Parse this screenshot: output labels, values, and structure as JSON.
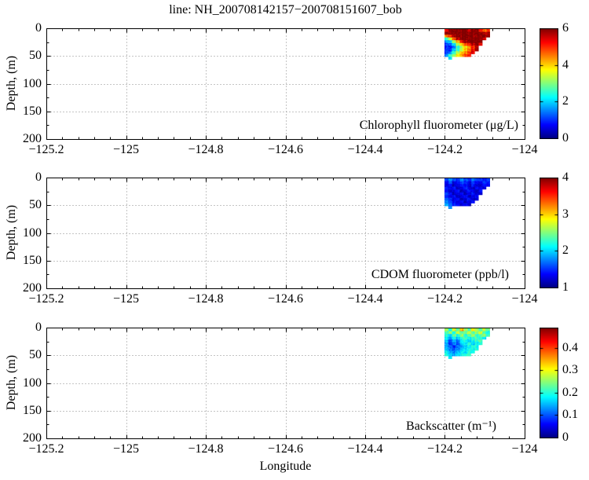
{
  "title": "line: NH_200708142157−200708151607_bob",
  "xlabel": "Longitude",
  "ylabel": "Depth, (m)",
  "axis": {
    "x_range": [
      -125.2,
      -124
    ],
    "y_range": [
      0,
      200
    ],
    "x_tick_values": [
      -125.2,
      -125,
      -124.8,
      -124.6,
      -124.4,
      -124.2,
      -124
    ],
    "x_tick_labels": [
      "−125.2",
      "−125",
      "−124.8",
      "−124.6",
      "−124.4",
      "−124.2",
      "−124"
    ],
    "y_tick_values": [
      0,
      50,
      100,
      150,
      200
    ],
    "y_tick_labels": [
      "0",
      "50",
      "100",
      "150",
      "200"
    ],
    "x_minor_step": 0.04,
    "y_minor_step": 25,
    "grid": "dotted"
  },
  "chart_data": [
    {
      "type": "heatmap",
      "name": "chlorophyll",
      "label": "Chlorophyll fluorometer (μg/L)",
      "colormap": "jet",
      "clim": [
        0,
        6
      ],
      "colorbar_tick_values": [
        0,
        2,
        4,
        6
      ],
      "colorbar_tick_labels": [
        "0",
        "2",
        "4",
        "6"
      ],
      "lon_range": [
        -124.2,
        -124.085
      ],
      "depth_range": [
        0,
        55
      ],
      "noise": 0.45,
      "grid": [
        [
          5.2,
          6,
          6,
          6,
          6,
          6,
          5.6,
          6,
          6,
          5.2,
          4.6,
          5.0
        ],
        [
          5.8,
          6,
          6,
          6,
          6,
          6,
          6,
          6,
          6,
          6,
          5.6,
          5.8
        ],
        [
          4.4,
          5.2,
          5.8,
          6,
          6,
          6,
          6,
          6,
          6,
          6,
          6,
          6
        ],
        [
          2.6,
          3.6,
          4.8,
          5.6,
          6,
          6,
          6,
          6,
          6,
          6,
          5.4,
          null
        ],
        [
          1.6,
          2.0,
          3.2,
          4.2,
          5.2,
          5.6,
          6,
          6,
          6,
          6,
          null,
          null
        ],
        [
          1.0,
          1.4,
          2.2,
          3.2,
          4.0,
          4.6,
          5.2,
          5.6,
          6,
          5.4,
          null,
          null
        ],
        [
          0.8,
          1.0,
          1.6,
          2.4,
          3.2,
          3.8,
          4.4,
          5.0,
          5.6,
          null,
          null,
          null
        ],
        [
          0.9,
          1.1,
          2.0,
          2.6,
          3.4,
          4.0,
          4.6,
          5.2,
          5.8,
          null,
          null,
          null
        ],
        [
          1.1,
          1.7,
          2.6,
          3.4,
          4.0,
          4.4,
          5.0,
          5.4,
          null,
          null,
          null,
          null
        ],
        [
          1.4,
          2.6,
          3.2,
          3.8,
          4.2,
          4.8,
          5.2,
          null,
          null,
          null,
          null,
          null
        ],
        [
          null,
          2.2,
          null,
          null,
          null,
          null,
          null,
          null,
          null,
          null,
          null,
          null
        ]
      ]
    },
    {
      "type": "heatmap",
      "name": "cdom",
      "label": "CDOM fluorometer (ppb/l)",
      "colormap": "jet",
      "clim": [
        1,
        4
      ],
      "colorbar_tick_values": [
        1,
        2,
        3,
        4
      ],
      "colorbar_tick_labels": [
        "1",
        "2",
        "3",
        "4"
      ],
      "lon_range": [
        -124.2,
        -124.085
      ],
      "depth_range": [
        0,
        55
      ],
      "noise": 0.14,
      "grid": [
        [
          1.6,
          1.8,
          1.6,
          1.5,
          1.8,
          1.6,
          1.5,
          1.7,
          1.6,
          1.5,
          1.4,
          1.5
        ],
        [
          1.4,
          1.6,
          1.3,
          1.4,
          1.6,
          1.5,
          1.3,
          1.5,
          1.4,
          1.3,
          1.5,
          1.4
        ],
        [
          1.3,
          1.4,
          1.2,
          1.3,
          1.5,
          1.4,
          1.2,
          1.4,
          1.3,
          1.2,
          1.4,
          1.3
        ],
        [
          1.5,
          1.3,
          1.4,
          1.2,
          1.3,
          1.5,
          1.3,
          1.2,
          1.4,
          1.3,
          1.2,
          null
        ],
        [
          1.4,
          1.2,
          1.3,
          1.4,
          1.2,
          1.3,
          1.4,
          1.3,
          1.2,
          1.4,
          null,
          null
        ],
        [
          1.6,
          1.4,
          1.2,
          1.3,
          1.4,
          1.2,
          1.3,
          1.4,
          1.3,
          1.2,
          null,
          null
        ],
        [
          1.5,
          1.3,
          1.4,
          1.2,
          1.3,
          1.4,
          1.2,
          1.3,
          1.4,
          null,
          null,
          null
        ],
        [
          1.7,
          1.5,
          1.3,
          1.4,
          1.2,
          1.3,
          1.4,
          1.2,
          1.3,
          null,
          null,
          null
        ],
        [
          1.8,
          1.6,
          1.4,
          1.3,
          1.4,
          1.2,
          1.3,
          1.4,
          null,
          null,
          null,
          null
        ],
        [
          1.9,
          1.7,
          1.5,
          1.4,
          1.3,
          1.4,
          1.2,
          null,
          null,
          null,
          null,
          null
        ],
        [
          null,
          1.8,
          null,
          null,
          null,
          null,
          null,
          null,
          null,
          null,
          null,
          null
        ]
      ]
    },
    {
      "type": "heatmap",
      "name": "backscatter",
      "label": "Backscatter (m⁻¹)",
      "colormap": "jet",
      "clim": [
        0,
        0.49
      ],
      "colorbar_tick_values": [
        0,
        0.1,
        0.2,
        0.3,
        0.4
      ],
      "colorbar_tick_labels": [
        "0",
        "0.1",
        "0.2",
        "0.3",
        "0.4"
      ],
      "lon_range": [
        -124.2,
        -124.085
      ],
      "depth_range": [
        0,
        55
      ],
      "noise": 0.035,
      "grid": [
        [
          0.26,
          0.2,
          0.3,
          0.24,
          0.34,
          0.26,
          0.22,
          0.3,
          0.26,
          0.22,
          0.28,
          0.24
        ],
        [
          0.22,
          0.26,
          0.2,
          0.28,
          0.22,
          0.24,
          0.28,
          0.22,
          0.25,
          0.28,
          0.22,
          0.2
        ],
        [
          0.2,
          0.17,
          0.24,
          0.2,
          0.25,
          0.2,
          0.22,
          0.25,
          0.2,
          0.22,
          0.25,
          0.22
        ],
        [
          0.18,
          0.14,
          0.2,
          0.16,
          0.2,
          0.22,
          0.18,
          0.2,
          0.22,
          0.2,
          0.18,
          null
        ],
        [
          0.16,
          0.11,
          0.15,
          0.12,
          0.17,
          0.2,
          0.16,
          0.18,
          0.2,
          0.22,
          null,
          null
        ],
        [
          0.15,
          0.09,
          0.13,
          0.1,
          0.15,
          0.18,
          0.2,
          0.16,
          0.18,
          0.2,
          null,
          null
        ],
        [
          0.14,
          0.11,
          0.09,
          0.12,
          0.14,
          0.16,
          0.18,
          0.2,
          0.18,
          null,
          null,
          null
        ],
        [
          0.16,
          0.13,
          0.11,
          0.13,
          0.15,
          0.17,
          0.19,
          0.18,
          0.2,
          null,
          null,
          null
        ],
        [
          0.18,
          0.15,
          0.13,
          0.15,
          0.17,
          0.18,
          0.2,
          0.19,
          null,
          null,
          null,
          null
        ],
        [
          0.2,
          0.17,
          0.15,
          0.17,
          0.18,
          0.2,
          0.21,
          null,
          null,
          null,
          null,
          null
        ],
        [
          null,
          0.18,
          null,
          null,
          null,
          null,
          null,
          null,
          null,
          null,
          null,
          null
        ]
      ]
    }
  ],
  "style": {
    "grid_color": "#888888",
    "axis_color": "#000000",
    "background": "#ffffff"
  }
}
